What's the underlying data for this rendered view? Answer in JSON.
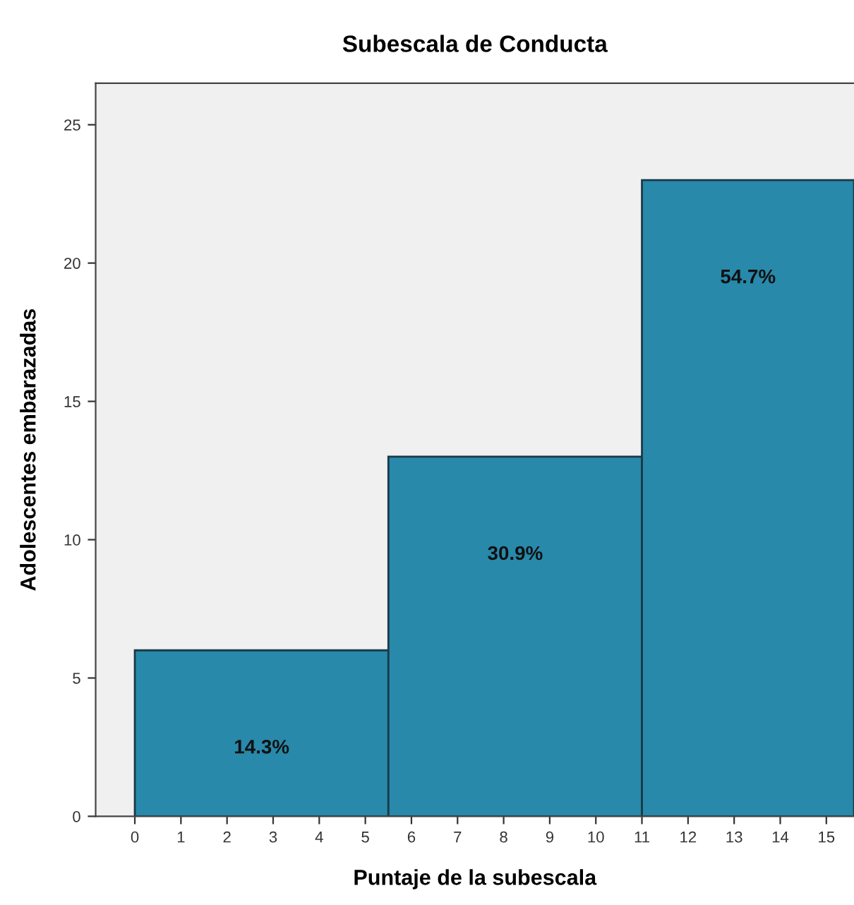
{
  "chart_data": {
    "type": "histogram",
    "title": "Subescala de Conducta",
    "xlabel": "Puntaje de la subescala",
    "ylabel": "Adolescentes embarazadas",
    "bins": [
      0,
      5.5,
      11,
      15.6
    ],
    "values": [
      6,
      13,
      23
    ],
    "color": "#2889ab",
    "annotations": [
      "14.3%",
      "30.9%",
      "54.7%"
    ],
    "xlim": [
      -0.85,
      15.6
    ],
    "xticks": [
      0,
      1,
      2,
      3,
      4,
      5,
      6,
      7,
      8,
      9,
      10,
      11,
      12,
      13,
      14,
      15
    ],
    "ylim": [
      0,
      26.5
    ],
    "yticks": [
      0,
      5,
      10,
      15,
      20,
      25
    ],
    "grid": false
  }
}
